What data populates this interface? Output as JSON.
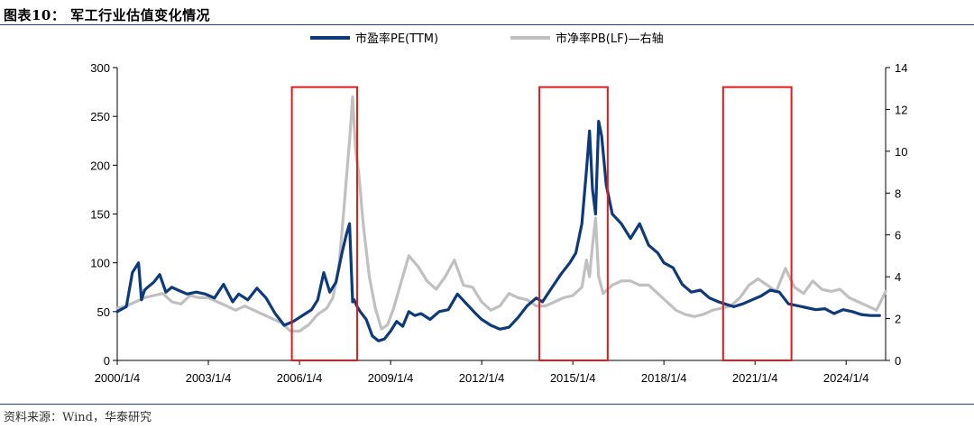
{
  "header": {
    "title": "图表10： 军工行业估值变化情况"
  },
  "footer": {
    "source": "资料来源：Wind，华泰研究"
  },
  "colors": {
    "pe": "#0d3a7a",
    "pb": "#c0c0c0",
    "box": "#e31b1b",
    "axis": "#000000"
  },
  "chart_data": {
    "type": "line",
    "title": "军工行业估值变化情况",
    "xlabel": "",
    "ylabel": "",
    "x_ticks": [
      "2000/1/4",
      "2003/1/4",
      "2006/1/4",
      "2009/1/4",
      "2012/1/4",
      "2015/1/4",
      "2018/1/4",
      "2021/1/4",
      "2024/1/4"
    ],
    "x_range": [
      2000.0,
      2025.3
    ],
    "ylim_left": [
      0,
      300
    ],
    "ylim_right": [
      0,
      14
    ],
    "y_ticks_left": [
      0,
      50,
      100,
      150,
      200,
      250,
      300
    ],
    "y_ticks_right": [
      0,
      2,
      4,
      6,
      8,
      10,
      12,
      14
    ],
    "legend_position": "top-center",
    "series": [
      {
        "name": "市盈率PE(TTM)",
        "axis": "left",
        "color": "#0d3a7a",
        "x": [
          2000.0,
          2000.3,
          2000.5,
          2000.7,
          2000.8,
          2000.9,
          2001.0,
          2001.2,
          2001.4,
          2001.6,
          2001.8,
          2002.0,
          2002.3,
          2002.6,
          2002.9,
          2003.2,
          2003.5,
          2003.8,
          2004.0,
          2004.3,
          2004.6,
          2004.9,
          2005.2,
          2005.5,
          2005.8,
          2006.0,
          2006.2,
          2006.4,
          2006.6,
          2006.8,
          2007.0,
          2007.2,
          2007.4,
          2007.55,
          2007.65,
          2007.75,
          2007.8,
          2007.9,
          2008.0,
          2008.2,
          2008.4,
          2008.6,
          2008.8,
          2009.0,
          2009.2,
          2009.4,
          2009.6,
          2009.8,
          2010.0,
          2010.3,
          2010.6,
          2010.9,
          2011.2,
          2011.5,
          2011.8,
          2012.0,
          2012.3,
          2012.6,
          2012.9,
          2013.2,
          2013.5,
          2013.8,
          2014.0,
          2014.3,
          2014.6,
          2014.9,
          2015.1,
          2015.3,
          2015.45,
          2015.55,
          2015.65,
          2015.75,
          2015.85,
          2015.95,
          2016.1,
          2016.3,
          2016.6,
          2016.9,
          2017.2,
          2017.5,
          2017.8,
          2018.0,
          2018.3,
          2018.6,
          2018.9,
          2019.2,
          2019.5,
          2019.8,
          2020.0,
          2020.3,
          2020.6,
          2020.9,
          2021.2,
          2021.5,
          2021.8,
          2022.1,
          2022.4,
          2022.7,
          2023.0,
          2023.3,
          2023.6,
          2023.9,
          2024.2,
          2024.5,
          2024.8,
          2025.1
        ],
        "values": [
          50,
          55,
          90,
          100,
          62,
          72,
          75,
          80,
          88,
          70,
          75,
          72,
          68,
          70,
          68,
          64,
          78,
          60,
          68,
          62,
          74,
          64,
          48,
          36,
          40,
          44,
          48,
          52,
          62,
          90,
          70,
          80,
          110,
          130,
          140,
          60,
          62,
          55,
          50,
          42,
          25,
          20,
          22,
          30,
          40,
          35,
          50,
          46,
          48,
          42,
          50,
          52,
          68,
          58,
          48,
          42,
          36,
          32,
          34,
          44,
          56,
          64,
          60,
          74,
          88,
          100,
          110,
          140,
          195,
          235,
          175,
          150,
          245,
          230,
          180,
          150,
          140,
          125,
          140,
          118,
          110,
          100,
          95,
          78,
          70,
          72,
          64,
          60,
          58,
          55,
          58,
          62,
          66,
          72,
          70,
          58,
          56,
          54,
          52,
          53,
          48,
          52,
          50,
          47,
          46,
          46
        ]
      },
      {
        "name": "市净率PB(LF)—右轴",
        "axis": "right",
        "color": "#c0c0c0",
        "x": [
          2000.0,
          2000.3,
          2000.6,
          2000.9,
          2001.2,
          2001.5,
          2001.8,
          2002.1,
          2002.4,
          2002.7,
          2003.0,
          2003.3,
          2003.6,
          2003.9,
          2004.2,
          2004.5,
          2004.8,
          2005.1,
          2005.4,
          2005.7,
          2006.0,
          2006.3,
          2006.6,
          2006.9,
          2007.1,
          2007.3,
          2007.45,
          2007.55,
          2007.65,
          2007.75,
          2007.85,
          2007.95,
          2008.1,
          2008.3,
          2008.5,
          2008.7,
          2008.9,
          2009.1,
          2009.3,
          2009.6,
          2009.9,
          2010.2,
          2010.5,
          2010.8,
          2011.1,
          2011.4,
          2011.7,
          2012.0,
          2012.3,
          2012.6,
          2012.9,
          2013.2,
          2013.5,
          2013.8,
          2014.1,
          2014.4,
          2014.7,
          2015.0,
          2015.3,
          2015.45,
          2015.55,
          2015.65,
          2015.75,
          2015.85,
          2016.0,
          2016.3,
          2016.6,
          2016.9,
          2017.2,
          2017.5,
          2017.8,
          2018.1,
          2018.4,
          2018.7,
          2019.0,
          2019.3,
          2019.6,
          2019.9,
          2020.2,
          2020.5,
          2020.8,
          2021.1,
          2021.4,
          2021.7,
          2022.0,
          2022.3,
          2022.6,
          2022.9,
          2023.2,
          2023.5,
          2023.8,
          2024.1,
          2024.4,
          2024.7,
          2025.0,
          2025.3
        ],
        "values": [
          2.5,
          2.6,
          2.8,
          3.0,
          3.1,
          3.2,
          2.8,
          2.7,
          3.1,
          3.0,
          3.0,
          2.8,
          2.6,
          2.4,
          2.6,
          2.4,
          2.2,
          2.0,
          1.8,
          1.4,
          1.4,
          1.7,
          2.2,
          2.5,
          3.0,
          4.5,
          7.0,
          8.8,
          10.5,
          12.6,
          10.0,
          9.0,
          6.5,
          4.0,
          2.5,
          1.5,
          1.7,
          2.5,
          3.5,
          5.0,
          4.5,
          3.8,
          3.4,
          4.0,
          4.8,
          3.6,
          3.5,
          2.8,
          2.4,
          2.6,
          3.2,
          3.0,
          2.9,
          2.6,
          2.6,
          2.8,
          3.0,
          3.1,
          3.5,
          4.8,
          4.0,
          5.5,
          6.8,
          4.0,
          3.2,
          3.6,
          3.8,
          3.8,
          3.6,
          3.6,
          3.2,
          2.8,
          2.4,
          2.2,
          2.1,
          2.2,
          2.4,
          2.5,
          2.6,
          3.0,
          3.6,
          3.9,
          3.6,
          3.3,
          4.4,
          3.5,
          3.2,
          3.8,
          3.4,
          3.3,
          3.4,
          3.0,
          2.8,
          2.6,
          2.4,
          3.3
        ]
      }
    ],
    "highlight_boxes": [
      {
        "x_start": 2005.75,
        "x_end": 2007.9,
        "y_top": 280
      },
      {
        "x_start": 2013.9,
        "x_end": 2016.15,
        "y_top": 280
      },
      {
        "x_start": 2019.95,
        "x_end": 2022.2,
        "y_top": 280
      }
    ]
  }
}
